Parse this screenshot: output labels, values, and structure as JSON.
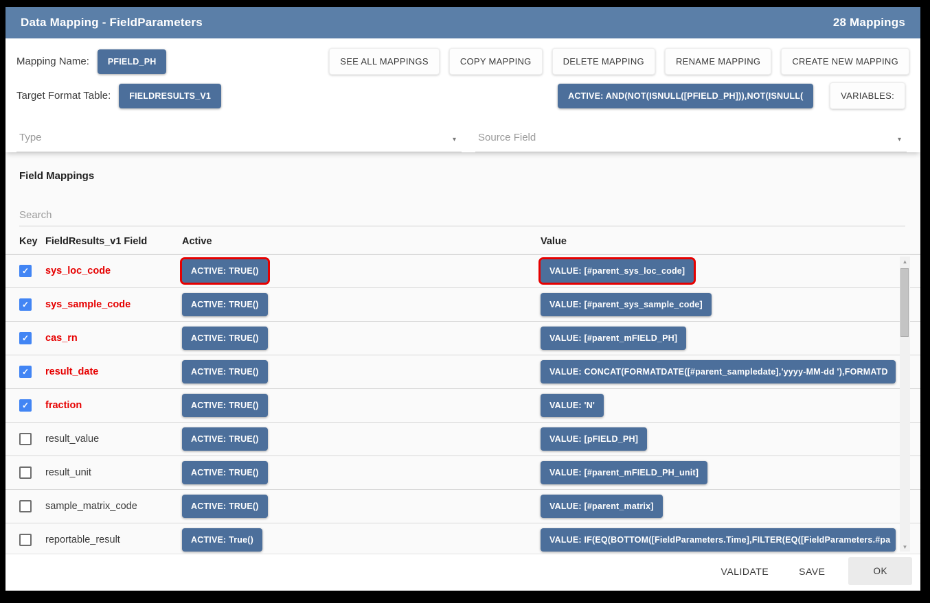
{
  "title_bar": {
    "title": "Data Mapping - FieldParameters",
    "count": "28 Mappings"
  },
  "mapping": {
    "name_label": "Mapping Name:",
    "name_chip": "PFIELD_PH",
    "target_label": "Target Format Table:",
    "target_chip": "FIELDRESULTS_V1",
    "active_formula_chip": "ACTIVE: AND(NOT(ISNULL([PFIELD_PH])),NOT(ISNULL(",
    "variables_button": "VARIABLES:"
  },
  "toolbar": {
    "buttons": [
      "SEE ALL MAPPINGS",
      "COPY MAPPING",
      "DELETE MAPPING",
      "RENAME MAPPING",
      "CREATE NEW MAPPING"
    ]
  },
  "filters": {
    "type_placeholder": "Type",
    "source_field_placeholder": "Source Field"
  },
  "field_mappings": {
    "heading": "Field Mappings",
    "search_placeholder": "Search",
    "columns": [
      "Key",
      "FieldResults_v1 Field",
      "Active",
      "Value"
    ],
    "rows": [
      {
        "key": true,
        "field": "sys_loc_code",
        "red": true,
        "active": "ACTIVE: TRUE()",
        "value": "VALUE: [#parent_sys_loc_code]",
        "highlighted": true,
        "truncated": false
      },
      {
        "key": true,
        "field": "sys_sample_code",
        "red": true,
        "active": "ACTIVE: TRUE()",
        "value": "VALUE: [#parent_sys_sample_code]",
        "highlighted": false,
        "truncated": false
      },
      {
        "key": true,
        "field": "cas_rn",
        "red": true,
        "active": "ACTIVE: TRUE()",
        "value": "VALUE: [#parent_mFIELD_PH]",
        "highlighted": false,
        "truncated": false
      },
      {
        "key": true,
        "field": "result_date",
        "red": true,
        "active": "ACTIVE: TRUE()",
        "value": "VALUE: CONCAT(FORMATDATE([#parent_sampledate],'yyyy-MM-dd '),FORMATD",
        "highlighted": false,
        "truncated": true
      },
      {
        "key": true,
        "field": "fraction",
        "red": true,
        "active": "ACTIVE: TRUE()",
        "value": "VALUE: 'N'",
        "highlighted": false,
        "truncated": false
      },
      {
        "key": false,
        "field": "result_value",
        "red": false,
        "active": "ACTIVE: TRUE()",
        "value": "VALUE: [pFIELD_PH]",
        "highlighted": false,
        "truncated": false
      },
      {
        "key": false,
        "field": "result_unit",
        "red": false,
        "active": "ACTIVE: TRUE()",
        "value": "VALUE: [#parent_mFIELD_PH_unit]",
        "highlighted": false,
        "truncated": false
      },
      {
        "key": false,
        "field": "sample_matrix_code",
        "red": false,
        "active": "ACTIVE: TRUE()",
        "value": "VALUE: [#parent_matrix]",
        "highlighted": false,
        "truncated": false
      },
      {
        "key": false,
        "field": "reportable_result",
        "red": false,
        "active": "ACTIVE: True()",
        "value": "VALUE: IF(EQ(BOTTOM([FieldParameters.Time],FILTER(EQ([FieldParameters.#pa",
        "highlighted": false,
        "truncated": true
      }
    ]
  },
  "footer": {
    "validate_label": "VALIDATE",
    "save_label": "SAVE",
    "ok_label": "OK"
  },
  "icons": {
    "dropdown_arrow": "▾",
    "scroll_up": "▲",
    "scroll_down": "▼",
    "checkmark": "✓"
  },
  "colors": {
    "title_bar_blue": "#5b7fa8",
    "chip_blue": "#4c6f9b",
    "highlight_red": "#e60000",
    "key_field_red": "#e60000",
    "checkbox_blue": "#4285f4",
    "ok_button_bg": "#ebebeb"
  }
}
